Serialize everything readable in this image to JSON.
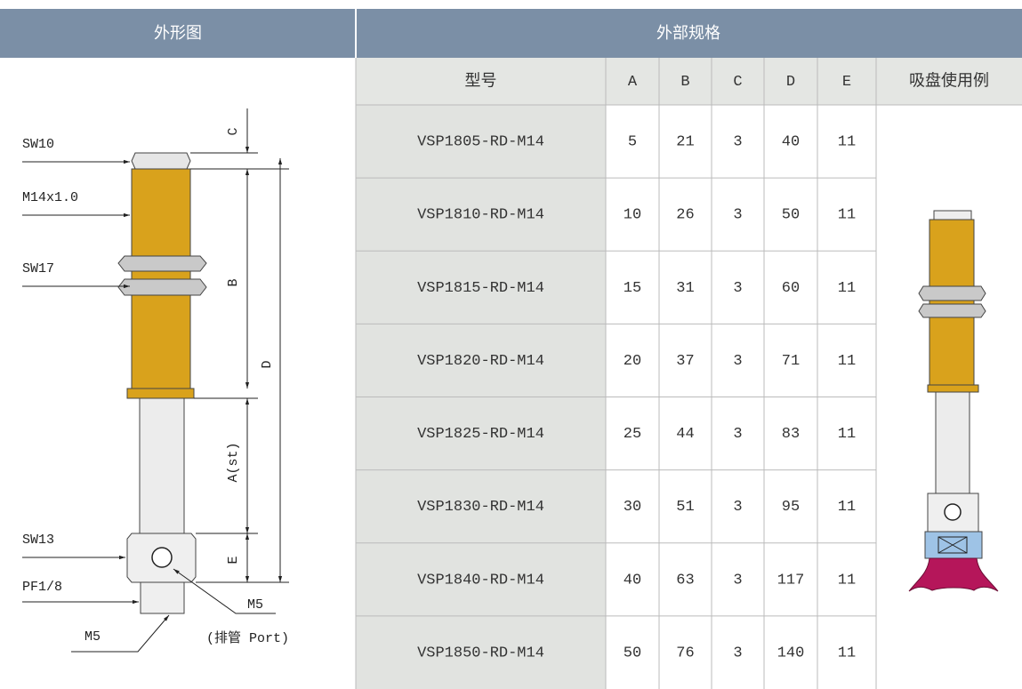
{
  "header": {
    "left": "外形图",
    "right": "外部规格"
  },
  "table": {
    "columns": [
      "型号",
      "A",
      "B",
      "C",
      "D",
      "E",
      "吸盘使用例"
    ],
    "rows": [
      [
        "VSP1805-RD-M14",
        5,
        21,
        3,
        40,
        11
      ],
      [
        "VSP1810-RD-M14",
        10,
        26,
        3,
        50,
        11
      ],
      [
        "VSP1815-RD-M14",
        15,
        31,
        3,
        60,
        11
      ],
      [
        "VSP1820-RD-M14",
        20,
        37,
        3,
        71,
        11
      ],
      [
        "VSP1825-RD-M14",
        25,
        44,
        3,
        83,
        11
      ],
      [
        "VSP1830-RD-M14",
        30,
        51,
        3,
        95,
        11
      ],
      [
        "VSP1840-RD-M14",
        40,
        63,
        3,
        117,
        11
      ],
      [
        "VSP1850-RD-M14",
        50,
        76,
        3,
        140,
        11
      ]
    ]
  },
  "diagram": {
    "dims": [
      "C",
      "B",
      "D",
      "A(st)",
      "E"
    ],
    "callouts": [
      "SW10",
      "M14x1.0",
      "SW17",
      "SW13",
      "PF1/8",
      "M5",
      "M5",
      "(排管 Port)"
    ]
  }
}
